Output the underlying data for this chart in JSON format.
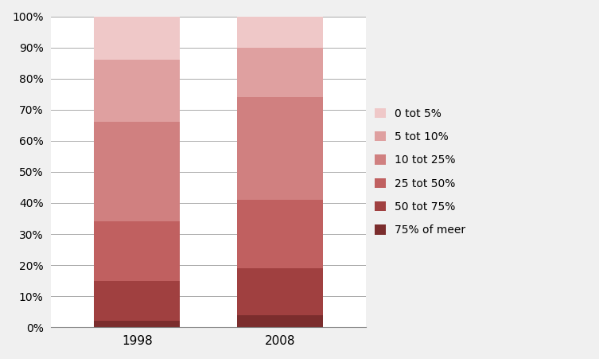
{
  "categories": [
    "1998",
    "2008"
  ],
  "segments": [
    {
      "label": "75% of meer",
      "color": "#7B2D2D",
      "values": [
        2,
        4
      ]
    },
    {
      "label": "50 tot 75%",
      "color": "#A04040",
      "values": [
        13,
        15
      ]
    },
    {
      "label": "25 tot 50%",
      "color": "#C06060",
      "values": [
        19,
        22
      ]
    },
    {
      "label": "10 tot 25%",
      "color": "#D08080",
      "values": [
        32,
        33
      ]
    },
    {
      "label": "5 tot 10%",
      "color": "#DFA0A0",
      "values": [
        20,
        16
      ]
    },
    {
      "label": "0 tot 5%",
      "color": "#EFC8C8",
      "values": [
        14,
        10
      ]
    }
  ],
  "ylim": [
    0,
    1.0
  ],
  "yticks": [
    0.0,
    0.1,
    0.2,
    0.3,
    0.4,
    0.5,
    0.6,
    0.7,
    0.8,
    0.9,
    1.0
  ],
  "yticklabels": [
    "0%",
    "10%",
    "20%",
    "30%",
    "40%",
    "50%",
    "60%",
    "70%",
    "80%",
    "90%",
    "100%"
  ],
  "bar_width": 0.6,
  "background_color": "#F0F0F0",
  "plot_bg_color": "#FFFFFF",
  "grid_color": "#AAAAAA",
  "legend_font_size": 10
}
